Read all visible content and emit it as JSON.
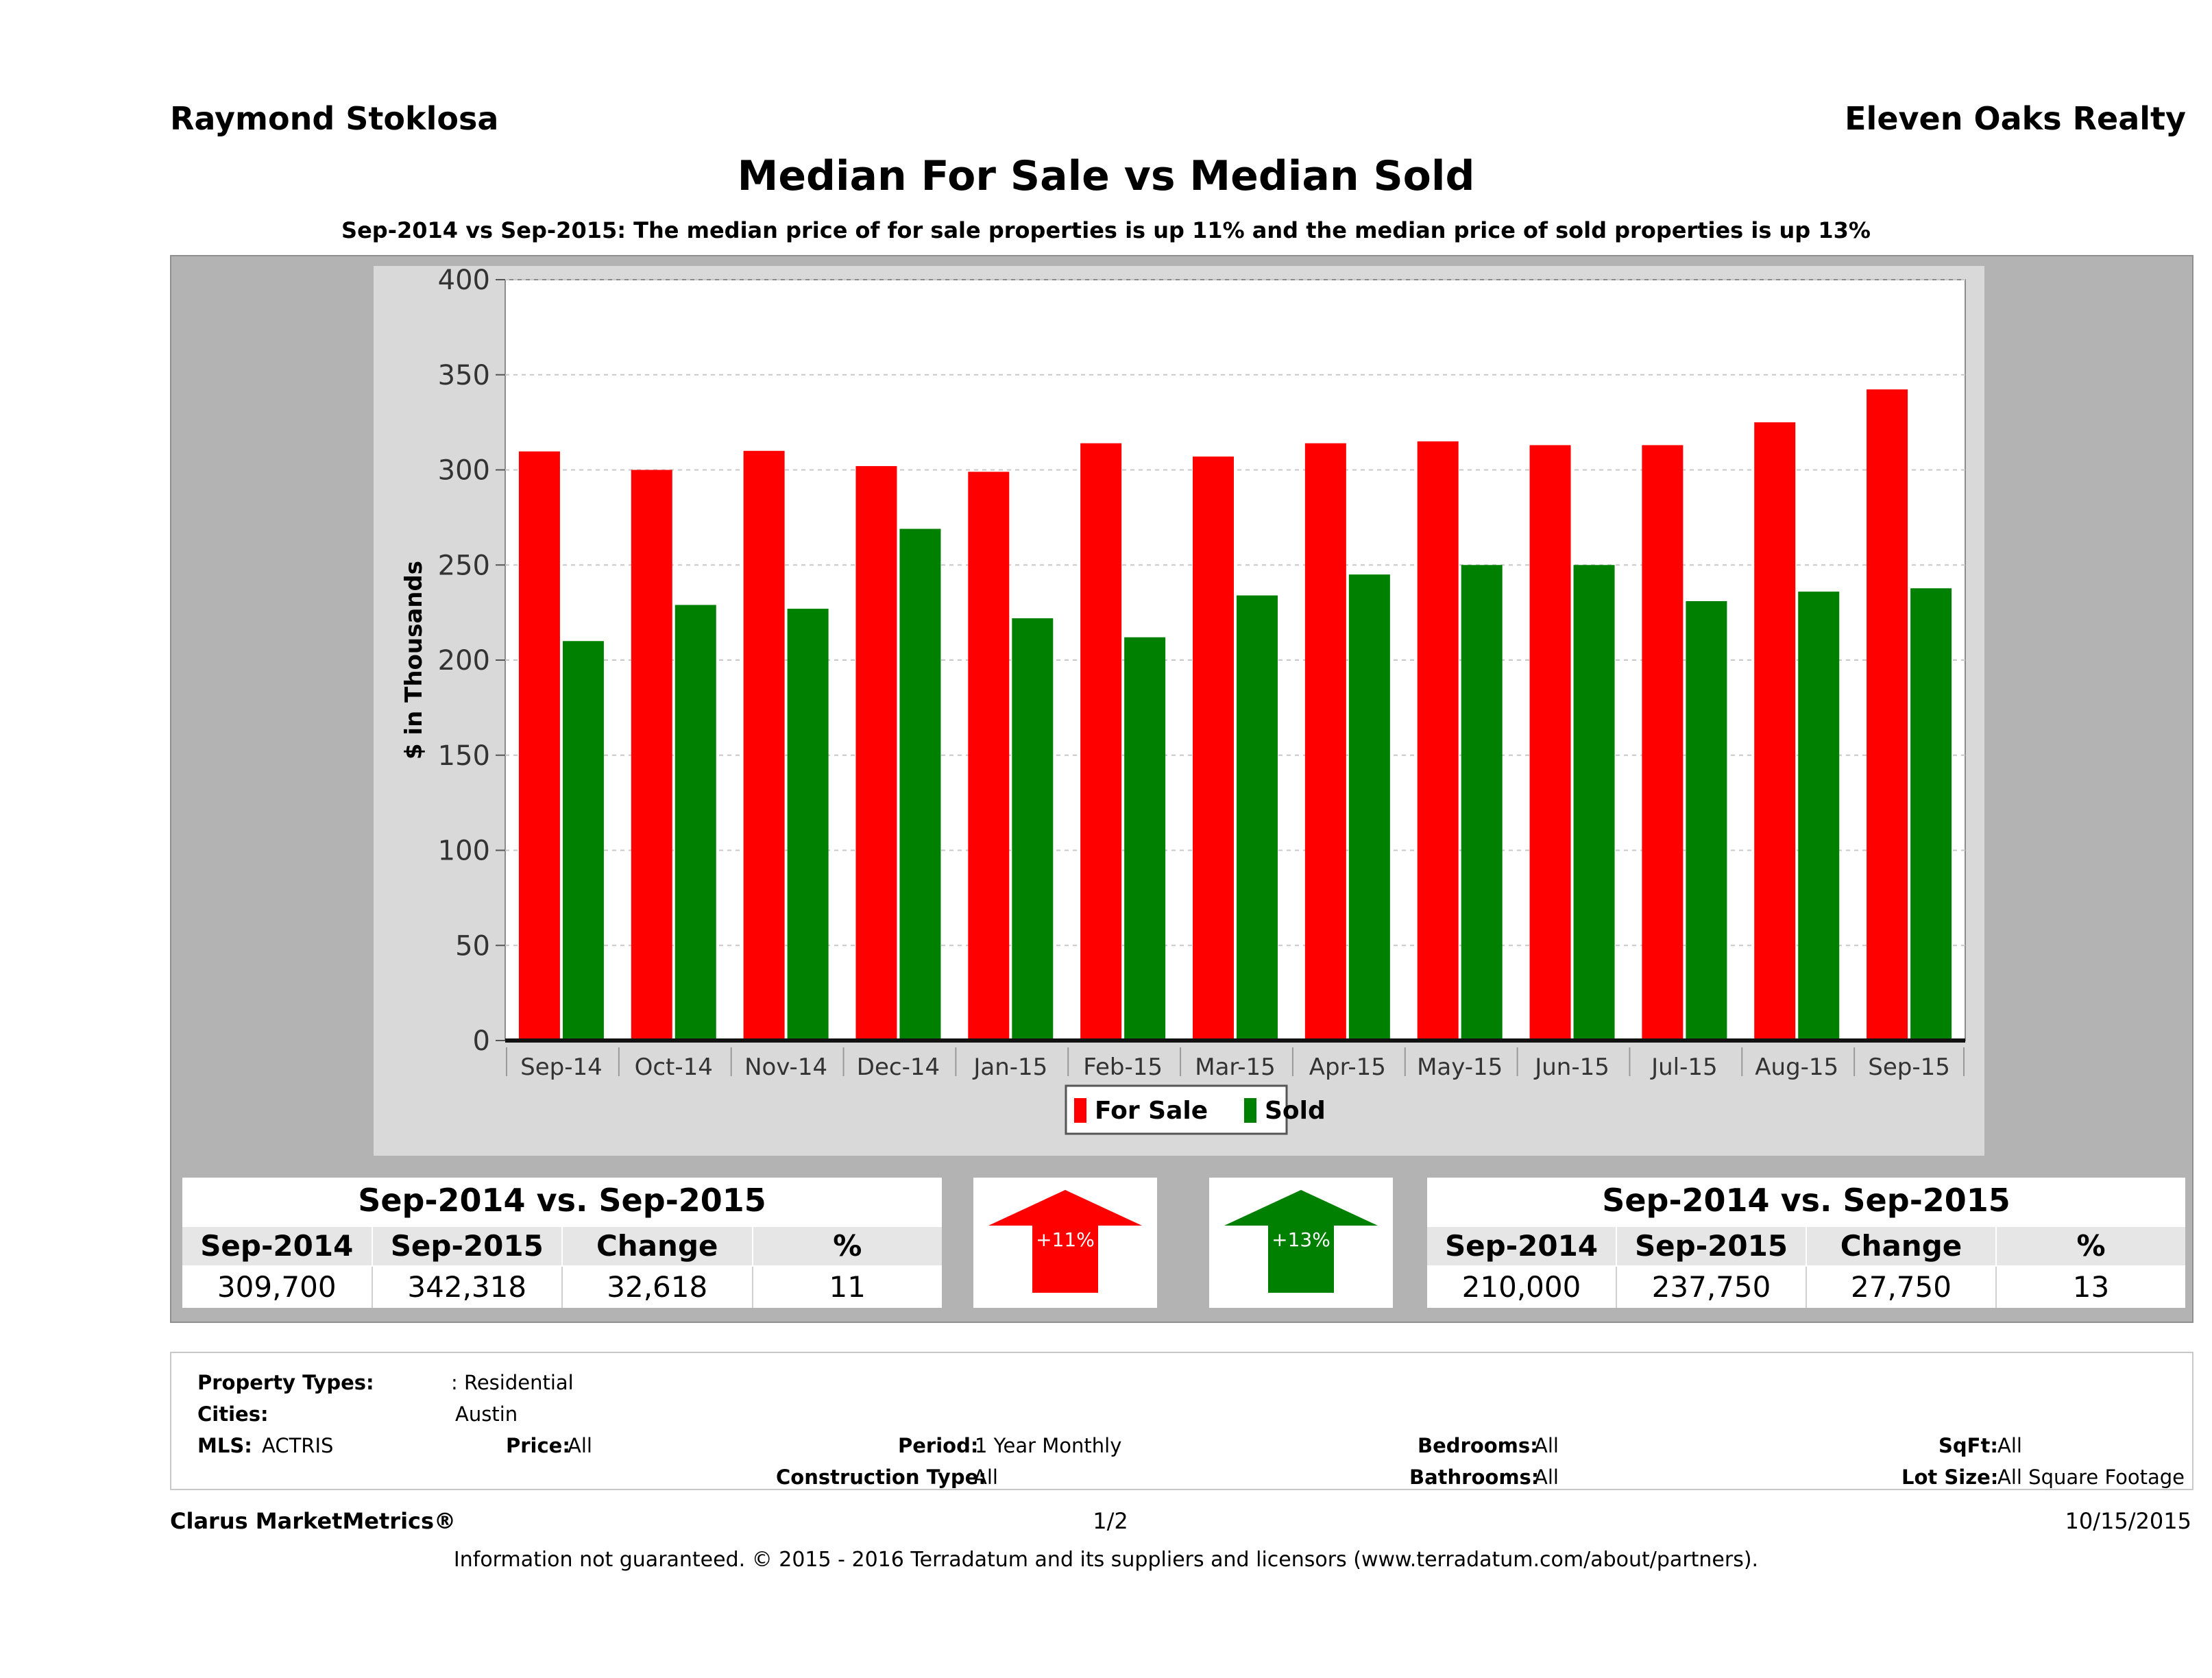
{
  "header": {
    "agent_name": "Raymond Stoklosa",
    "company": "Eleven Oaks Realty",
    "title": "Median For Sale vs Median Sold",
    "subtitle": "Sep-2014 vs Sep-2015: The median price of for sale properties is up 11% and the median price of sold properties is up 13%"
  },
  "chart_data": {
    "type": "bar",
    "categories": [
      "Sep-14",
      "Oct-14",
      "Nov-14",
      "Dec-14",
      "Jan-15",
      "Feb-15",
      "Mar-15",
      "Apr-15",
      "May-15",
      "Jun-15",
      "Jul-15",
      "Aug-15",
      "Sep-15"
    ],
    "series": [
      {
        "name": "For Sale",
        "color": "#ff0000",
        "values": [
          309.7,
          300,
          310,
          302,
          299,
          314,
          307,
          314,
          315,
          313,
          313,
          325,
          342.3
        ]
      },
      {
        "name": "Sold",
        "color": "#008000",
        "values": [
          210,
          229,
          227,
          269,
          222,
          212,
          234,
          245,
          250,
          250,
          231,
          236,
          237.75
        ]
      }
    ],
    "ylabel": "$ in Thousands",
    "ylim": [
      0,
      400
    ],
    "yticks": [
      0,
      50,
      100,
      150,
      200,
      250,
      300,
      350,
      400
    ],
    "grid": true,
    "legend_position": "bottom"
  },
  "stats_for_sale": {
    "heading": "Sep-2014 vs. Sep-2015",
    "columns": [
      "Sep-2014",
      "Sep-2015",
      "Change",
      "%"
    ],
    "values": [
      "309,700",
      "342,318",
      "32,618",
      "11"
    ],
    "badge": "+11%",
    "color": "#ff0000"
  },
  "stats_sold": {
    "heading": "Sep-2014 vs. Sep-2015",
    "columns": [
      "Sep-2014",
      "Sep-2015",
      "Change",
      "%"
    ],
    "values": [
      "210,000",
      "237,750",
      "27,750",
      "13"
    ],
    "badge": "+13%",
    "color": "#008000"
  },
  "filters": {
    "property_types_label": "Property Types:",
    "property_types_value": ": Residential",
    "cities_label": "Cities:",
    "cities_value": "Austin",
    "mls_label": "MLS:",
    "mls_value": "ACTRIS",
    "price_label": "Price:",
    "price_value": "All",
    "period_label": "Period:",
    "period_value": "1 Year Monthly",
    "construction_label": "Construction Type:",
    "construction_value": "All",
    "bedrooms_label": "Bedrooms:",
    "bedrooms_value": "All",
    "bathrooms_label": "Bathrooms:",
    "bathrooms_value": "All",
    "sqft_label": "SqFt:",
    "sqft_value": "All",
    "lot_size_label": "Lot Size:",
    "lot_size_value": "All Square Footage"
  },
  "footer": {
    "brand": "Clarus MarketMetrics®",
    "page": "1/2",
    "date": "10/15/2015",
    "disclaimer": "Information not guaranteed. © 2015 - 2016 Terradatum and its suppliers and licensors (www.terradatum.com/about/partners)."
  }
}
